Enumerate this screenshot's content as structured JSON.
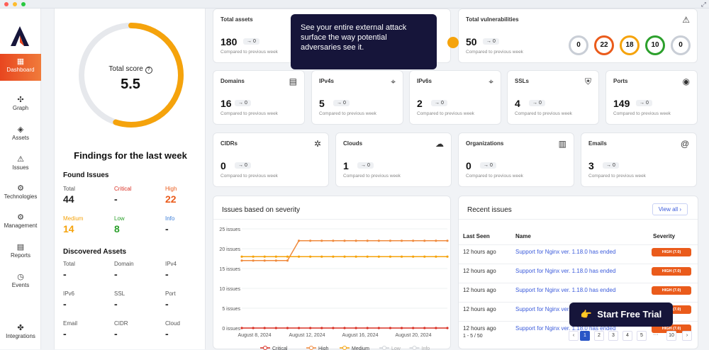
{
  "sidebar": {
    "items": [
      {
        "label": "Dashboard",
        "icon": "dashboard-icon",
        "glyph": "▦",
        "active": true
      },
      {
        "label": "Graph",
        "icon": "graph-icon",
        "glyph": "✣"
      },
      {
        "label": "Assets",
        "icon": "assets-icon",
        "glyph": "◈"
      },
      {
        "label": "Issues",
        "icon": "issues-icon",
        "glyph": "⚠"
      },
      {
        "label": "Technologies",
        "icon": "technologies-icon",
        "glyph": "⚙"
      },
      {
        "label": "Management",
        "icon": "management-icon",
        "glyph": "⚙"
      },
      {
        "label": "Reports",
        "icon": "reports-icon",
        "glyph": "▤"
      },
      {
        "label": "Events",
        "icon": "events-icon",
        "glyph": "◷"
      },
      {
        "label": "Integrations",
        "icon": "integrations-icon",
        "glyph": "✤"
      }
    ]
  },
  "score": {
    "label": "Total score",
    "info_glyph": "?",
    "value": "5.5",
    "fraction": 0.55,
    "color": "#f5a30c"
  },
  "findings": {
    "title": "Findings for the last week",
    "found_title": "Found Issues",
    "found": [
      {
        "label": "Total",
        "value": "44",
        "color": "#555",
        "vcolor": "#222"
      },
      {
        "label": "Critical",
        "value": "-",
        "color": "#d93025",
        "vcolor": "#222"
      },
      {
        "label": "High",
        "value": "22",
        "color": "#ea5b1b",
        "vcolor": "#ea5b1b"
      },
      {
        "label": "Medium",
        "value": "14",
        "color": "#f5a30c",
        "vcolor": "#f5a30c"
      },
      {
        "label": "Low",
        "value": "8",
        "color": "#2ca02c",
        "vcolor": "#2ca02c"
      },
      {
        "label": "Info",
        "value": "-",
        "color": "#3b7dd8",
        "vcolor": "#222"
      }
    ],
    "assets_title": "Discovered Assets",
    "assets": [
      {
        "label": "Total",
        "value": "-"
      },
      {
        "label": "Domain",
        "value": "-"
      },
      {
        "label": "IPv4",
        "value": "-"
      },
      {
        "label": "IPv6",
        "value": "-"
      },
      {
        "label": "SSL",
        "value": "-"
      },
      {
        "label": "Port",
        "value": "-"
      },
      {
        "label": "Email",
        "value": "-"
      },
      {
        "label": "CIDR",
        "value": "-"
      },
      {
        "label": "Cloud",
        "value": "-"
      }
    ]
  },
  "cards": {
    "compare": "Compared to previous week",
    "total_assets": {
      "title": "Total assets",
      "value": "180",
      "change": "→ 0"
    },
    "total_vulns": {
      "title": "Total vulnerabilities",
      "value": "50",
      "change": "→ 0",
      "icon": "warning-icon",
      "glyph": "⚠"
    },
    "row2": [
      {
        "title": "Domains",
        "value": "16",
        "change": "→ 0",
        "icon": "server-icon",
        "glyph": "▤"
      },
      {
        "title": "IPv4s",
        "value": "5",
        "change": "→ 0",
        "icon": "location-pin-icon",
        "glyph": "⌖"
      },
      {
        "title": "IPv6s",
        "value": "2",
        "change": "→ 0",
        "icon": "location-pin-icon",
        "glyph": "⌖"
      },
      {
        "title": "SSLs",
        "value": "4",
        "change": "→ 0",
        "icon": "shield-lock-icon",
        "glyph": "⛨"
      },
      {
        "title": "Ports",
        "value": "149",
        "change": "→ 0",
        "icon": "port-icon",
        "glyph": "◉"
      }
    ],
    "row3": [
      {
        "title": "CIDRs",
        "value": "0",
        "change": "→ 0",
        "icon": "network-icon",
        "glyph": "✲"
      },
      {
        "title": "Clouds",
        "value": "1",
        "change": "→ 0",
        "icon": "cloud-icon",
        "glyph": "☁"
      },
      {
        "title": "Organizations",
        "value": "0",
        "change": "→ 0",
        "icon": "building-icon",
        "glyph": "▥"
      },
      {
        "title": "Emails",
        "value": "3",
        "change": "→ 0",
        "icon": "at-icon",
        "glyph": "@"
      }
    ]
  },
  "severity_circles": [
    {
      "value": "0",
      "color": "#c9ced6"
    },
    {
      "value": "22",
      "color": "#ea5b1b"
    },
    {
      "value": "18",
      "color": "#f5a30c"
    },
    {
      "value": "10",
      "color": "#2ca02c"
    },
    {
      "value": "0",
      "color": "#c9ced6"
    }
  ],
  "tooltip": {
    "text": "See your entire external attack surface the way potential adversaries see it."
  },
  "chart_data": {
    "type": "line",
    "title": "Issues based on severity",
    "y_ticks": [
      "25 issues",
      "20 issues",
      "15 issues",
      "10 issues",
      "5 issues",
      "0 issues"
    ],
    "ylim": [
      0,
      25
    ],
    "x_ticks": [
      "August 8, 2024",
      "August 12, 2024",
      "August 16, 2024",
      "August 20, 2024"
    ],
    "series": [
      {
        "name": "Critical",
        "color": "#d93025",
        "values": [
          0,
          0,
          0,
          0,
          0,
          0,
          0,
          0,
          0,
          0,
          0,
          0,
          0,
          0,
          0,
          0,
          0,
          0,
          0
        ]
      },
      {
        "name": "High",
        "color": "#f08a3c",
        "values": [
          17,
          17,
          17,
          17,
          17,
          22,
          22,
          22,
          22,
          22,
          22,
          22,
          22,
          22,
          22,
          22,
          22,
          22,
          22
        ]
      },
      {
        "name": "Medium",
        "color": "#f5a30c",
        "values": [
          18,
          18,
          18,
          18,
          18,
          18,
          18,
          18,
          18,
          18,
          18,
          18,
          18,
          18,
          18,
          18,
          18,
          18,
          18
        ]
      },
      {
        "name": "Low",
        "color": "#cfd3d8",
        "values": []
      },
      {
        "name": "Info",
        "color": "#cfd3d8",
        "values": []
      }
    ]
  },
  "recent": {
    "title": "Recent issues",
    "view_all": "View all ›",
    "headers": [
      "Last Seen",
      "Name",
      "Severity"
    ],
    "rows": [
      {
        "time": "12 hours ago",
        "name": "Support for Nginx ver. 1.18.0 has ended",
        "sev": "HIGH (7.0)"
      },
      {
        "time": "12 hours ago",
        "name": "Support for Nginx ver. 1.18.0 has ended",
        "sev": "HIGH (7.0)"
      },
      {
        "time": "12 hours ago",
        "name": "Support for Nginx ver. 1.18.0 has ended",
        "sev": "HIGH (7.0)"
      },
      {
        "time": "12 hours ago",
        "name": "Support for Nginx ver. 1.18.0 has ended",
        "sev": "HIGH (7.0)"
      },
      {
        "time": "12 hours ago",
        "name": "Support for Nginx ver. 1.18.0 has ended",
        "sev": "HIGH (7.0)"
      }
    ],
    "range": "1 - 5 / 50",
    "pages": [
      "‹",
      "1",
      "2",
      "3",
      "4",
      "5",
      "···",
      "10",
      "›"
    ],
    "current_page": "1"
  },
  "cta": {
    "label": "Start Free Trial",
    "glyph": "👉"
  }
}
